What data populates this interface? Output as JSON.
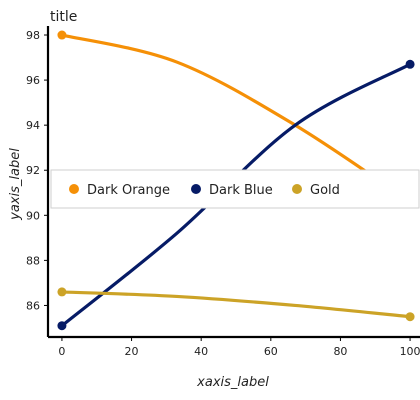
{
  "chart_data": {
    "type": "line",
    "title": "title",
    "xlabel": "xaxis_label",
    "ylabel": "yaxis_label",
    "xlim": [
      -4,
      104
    ],
    "ylim": [
      84.6,
      98.4
    ],
    "x_ticks": [
      0,
      20,
      40,
      60,
      80,
      100
    ],
    "x_tick_labels": [
      "0",
      "20",
      "40",
      "60",
      "80",
      "100"
    ],
    "y_ticks": [
      86,
      88,
      90,
      92,
      94,
      96,
      98
    ],
    "y_tick_labels": [
      "86",
      "88",
      "90",
      "92",
      "94",
      "96",
      "98"
    ],
    "grid": false,
    "legend_position": "center-right",
    "series": [
      {
        "name": "Dark Orange",
        "color": "#f59007",
        "x": [
          0,
          33,
          67,
          100
        ],
        "values": [
          98.0,
          96.8,
          94.0,
          90.6
        ]
      },
      {
        "name": "Dark Blue",
        "color": "#061b66",
        "x": [
          0,
          33,
          67,
          100
        ],
        "values": [
          85.1,
          89.2,
          94.0,
          96.7
        ]
      },
      {
        "name": "Gold",
        "color": "#cca327",
        "x": [
          0,
          33,
          67,
          100
        ],
        "values": [
          86.6,
          86.4,
          86.0,
          85.5
        ]
      }
    ]
  }
}
